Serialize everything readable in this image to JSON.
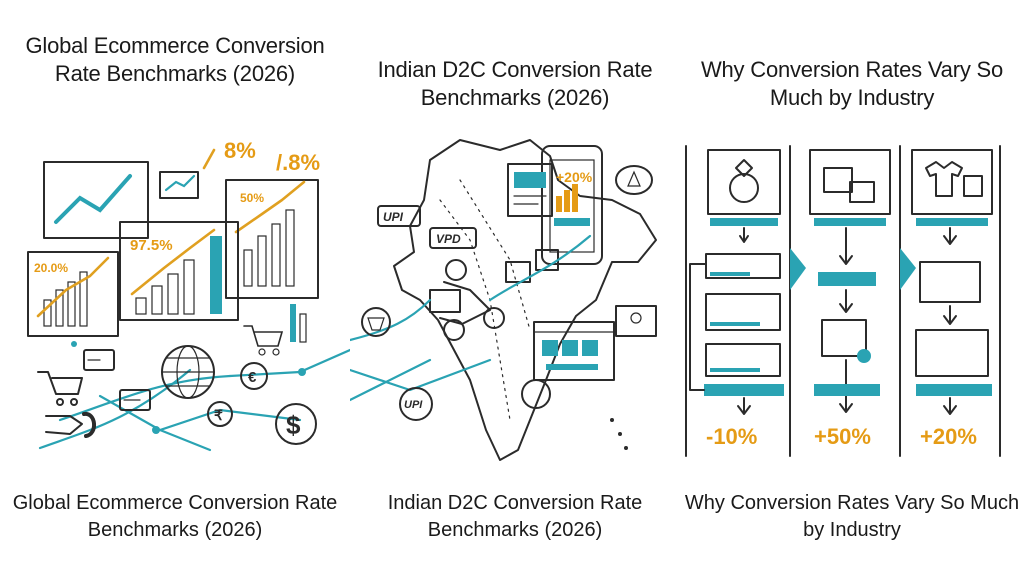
{
  "panels": [
    {
      "title": "Global Ecommerce Conversion Rate Benchmarks (2026)",
      "caption": "Global Ecommerce Conversion Rate Benchmarks (2026)",
      "chart_labels": [
        "8%",
        "/.8%",
        "50%",
        "97.5%",
        "20.0%"
      ]
    },
    {
      "title": "Indian D2C Conversion Rate Benchmarks (2026)",
      "caption": "Indian D2C Conversion Rate Benchmarks (2026)",
      "badges": [
        "UPI",
        "VPD",
        "UPI",
        "+20%"
      ]
    },
    {
      "title": "Why Conversion Rates Vary So Much by Industry",
      "caption": "Why Conversion Rates Vary So Much by Industry",
      "columns": [
        {
          "icon": "ring-icon",
          "value": "-10%"
        },
        {
          "icon": "boxes-icon",
          "value": "+50%"
        },
        {
          "icon": "clothing-icon",
          "value": "+20%"
        }
      ]
    }
  ],
  "colors": {
    "accent_teal": "#2aa3b3",
    "accent_orange": "#e59b15"
  }
}
